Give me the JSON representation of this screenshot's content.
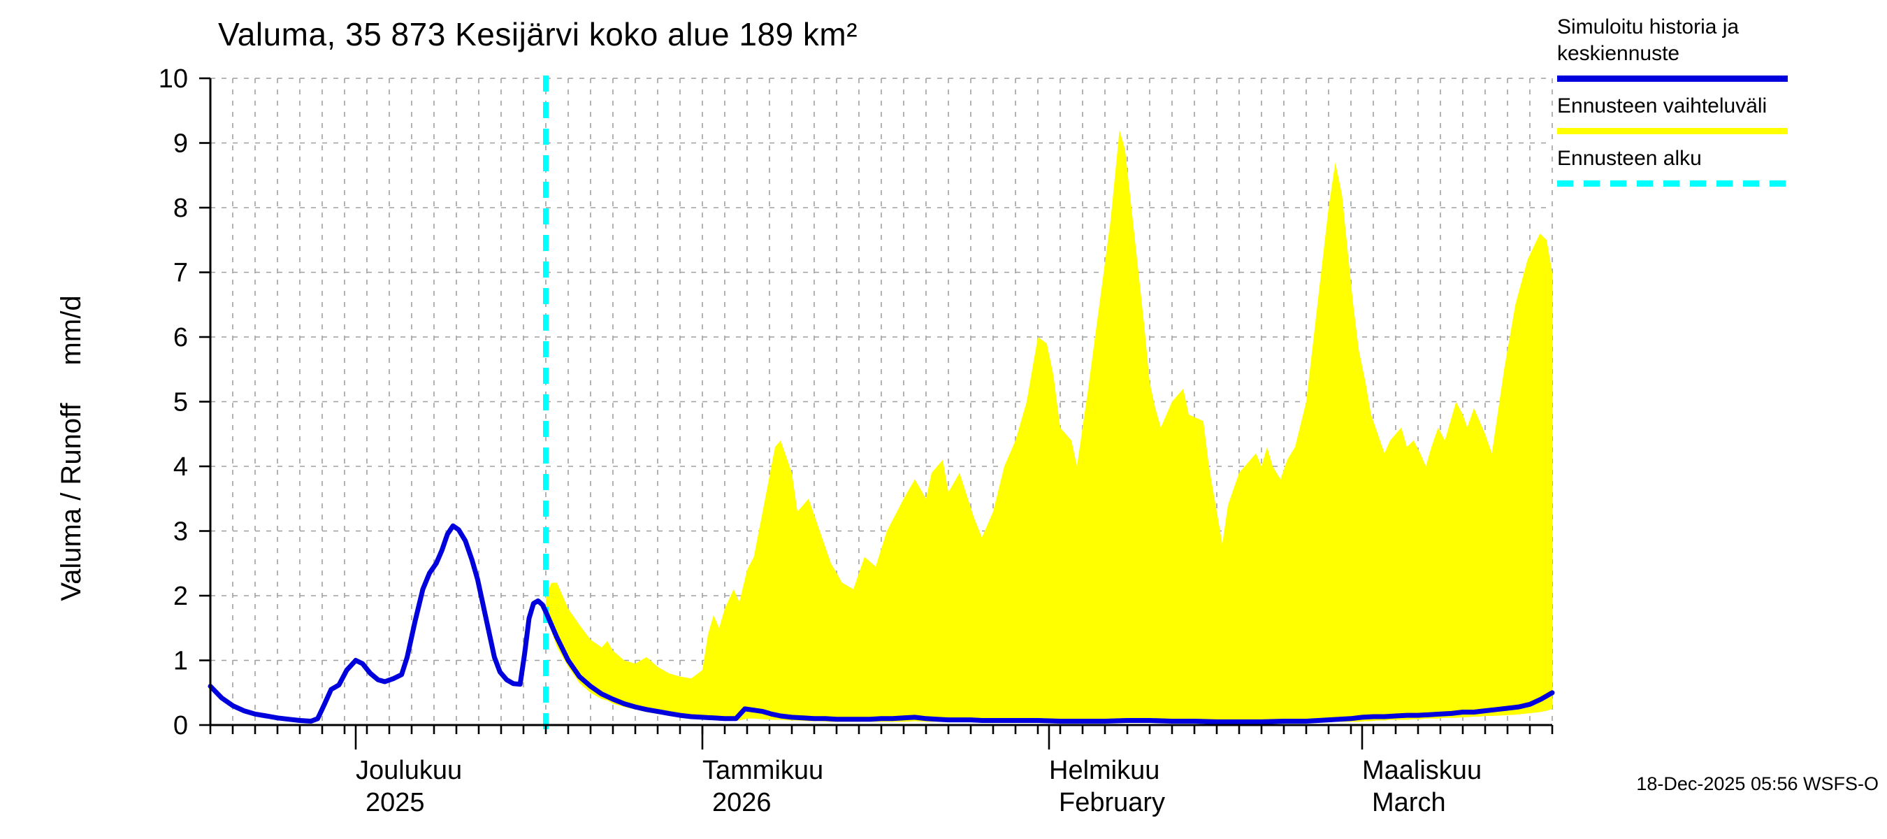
{
  "header": {
    "title": "Valuma, 35 873 Kesijärvi koko alue 189 km²"
  },
  "y_axis": {
    "label_main": "Valuma / Runoff",
    "label_unit": "mm/d"
  },
  "legend": {
    "position": "top-right",
    "items": [
      {
        "label_lines": [
          "Simuloitu historia ja",
          "keskiennuste"
        ],
        "color": "#0000dd",
        "style": "solid"
      },
      {
        "label_lines": [
          "Ennusteen vaihteluväli"
        ],
        "color": "#ffff00",
        "style": "solid"
      },
      {
        "label_lines": [
          "Ennusteen alku"
        ],
        "color": "#00ffff",
        "style": "dashed"
      }
    ]
  },
  "footer": {
    "timestamp": "18-Dec-2025 05:56 WSFS-O"
  },
  "chart_data": {
    "type": "line",
    "title": "Valuma, 35 873 Kesijärvi koko alue 189 km²",
    "xlabel": "",
    "ylabel": "Valuma / Runoff mm/d",
    "ylim": [
      0,
      10
    ],
    "yticks": [
      0,
      1,
      2,
      3,
      4,
      5,
      6,
      7,
      8,
      9,
      10
    ],
    "grid": true,
    "x_total_days": 120,
    "x_start_date": "2025-11-18",
    "forecast_start_day": 30,
    "x_axis": {
      "minor_tick_interval_days": 2,
      "month_ticks": [
        {
          "day": 13,
          "label1": "Joulukuu",
          "label2": "2025"
        },
        {
          "day": 44,
          "label1": "Tammikuu",
          "label2": "2026"
        },
        {
          "day": 75,
          "label1": "Helmikuu",
          "label2": "February"
        },
        {
          "day": 103,
          "label1": "Maaliskuu",
          "label2": "March"
        }
      ]
    },
    "series": {
      "history_mean": {
        "name": "Simuloitu historia ja keskiennuste",
        "color": "#0000dd",
        "points": [
          [
            0,
            0.6
          ],
          [
            1,
            0.42
          ],
          [
            2,
            0.3
          ],
          [
            3,
            0.22
          ],
          [
            4,
            0.17
          ],
          [
            5,
            0.14
          ],
          [
            6,
            0.11
          ],
          [
            7,
            0.09
          ],
          [
            8,
            0.07
          ],
          [
            9,
            0.06
          ],
          [
            9.6,
            0.1
          ],
          [
            10.2,
            0.32
          ],
          [
            10.8,
            0.55
          ],
          [
            11.5,
            0.62
          ],
          [
            12.2,
            0.85
          ],
          [
            13,
            1.0
          ],
          [
            13.6,
            0.95
          ],
          [
            14.3,
            0.8
          ],
          [
            15,
            0.7
          ],
          [
            15.6,
            0.67
          ],
          [
            16.4,
            0.72
          ],
          [
            17.1,
            0.78
          ],
          [
            17.6,
            1.05
          ],
          [
            18.3,
            1.6
          ],
          [
            19,
            2.1
          ],
          [
            19.6,
            2.35
          ],
          [
            20.2,
            2.5
          ],
          [
            20.7,
            2.7
          ],
          [
            21.2,
            2.95
          ],
          [
            21.7,
            3.08
          ],
          [
            22.2,
            3.02
          ],
          [
            22.8,
            2.85
          ],
          [
            23.4,
            2.55
          ],
          [
            23.9,
            2.25
          ],
          [
            24.4,
            1.85
          ],
          [
            24.9,
            1.45
          ],
          [
            25.4,
            1.05
          ],
          [
            25.9,
            0.82
          ],
          [
            26.5,
            0.7
          ],
          [
            27.1,
            0.64
          ],
          [
            27.7,
            0.63
          ],
          [
            28.1,
            1.1
          ],
          [
            28.5,
            1.65
          ],
          [
            28.9,
            1.88
          ],
          [
            29.3,
            1.92
          ],
          [
            29.7,
            1.86
          ],
          [
            30,
            1.75
          ],
          [
            31,
            1.35
          ],
          [
            32,
            1.0
          ],
          [
            33,
            0.75
          ],
          [
            34,
            0.6
          ],
          [
            35,
            0.48
          ],
          [
            36,
            0.4
          ],
          [
            37,
            0.33
          ],
          [
            38,
            0.28
          ],
          [
            39,
            0.24
          ],
          [
            40,
            0.21
          ],
          [
            41,
            0.18
          ],
          [
            42,
            0.15
          ],
          [
            43,
            0.13
          ],
          [
            44,
            0.12
          ],
          [
            45,
            0.11
          ],
          [
            46,
            0.1
          ],
          [
            47,
            0.1
          ],
          [
            47.8,
            0.25
          ],
          [
            48.6,
            0.23
          ],
          [
            49.4,
            0.21
          ],
          [
            50.2,
            0.17
          ],
          [
            51,
            0.14
          ],
          [
            52,
            0.12
          ],
          [
            53,
            0.11
          ],
          [
            54,
            0.1
          ],
          [
            55,
            0.1
          ],
          [
            56,
            0.09
          ],
          [
            57,
            0.09
          ],
          [
            58,
            0.09
          ],
          [
            59,
            0.09
          ],
          [
            60,
            0.1
          ],
          [
            61,
            0.1
          ],
          [
            62,
            0.11
          ],
          [
            63,
            0.12
          ],
          [
            64,
            0.1
          ],
          [
            65,
            0.09
          ],
          [
            66,
            0.08
          ],
          [
            67,
            0.08
          ],
          [
            68,
            0.08
          ],
          [
            69,
            0.07
          ],
          [
            70,
            0.07
          ],
          [
            72,
            0.07
          ],
          [
            74,
            0.07
          ],
          [
            76,
            0.06
          ],
          [
            78,
            0.06
          ],
          [
            80,
            0.06
          ],
          [
            82,
            0.07
          ],
          [
            84,
            0.07
          ],
          [
            86,
            0.06
          ],
          [
            88,
            0.06
          ],
          [
            90,
            0.05
          ],
          [
            92,
            0.05
          ],
          [
            94,
            0.05
          ],
          [
            96,
            0.06
          ],
          [
            98,
            0.06
          ],
          [
            100,
            0.08
          ],
          [
            102,
            0.1
          ],
          [
            103,
            0.12
          ],
          [
            104,
            0.13
          ],
          [
            105,
            0.13
          ],
          [
            106,
            0.14
          ],
          [
            107,
            0.15
          ],
          [
            108,
            0.15
          ],
          [
            109,
            0.16
          ],
          [
            110,
            0.17
          ],
          [
            111,
            0.18
          ],
          [
            112,
            0.2
          ],
          [
            113,
            0.2
          ],
          [
            114,
            0.22
          ],
          [
            115,
            0.24
          ],
          [
            116,
            0.26
          ],
          [
            117,
            0.28
          ],
          [
            118,
            0.32
          ],
          [
            119,
            0.4
          ],
          [
            120,
            0.5
          ]
        ]
      },
      "forecast_band": {
        "name": "Ennusteen vaihteluväli",
        "color": "#ffff00",
        "points": [
          [
            30,
            1.7,
            2.0
          ],
          [
            30.5,
            1.45,
            2.2
          ],
          [
            31,
            1.2,
            2.2
          ],
          [
            31.5,
            1.05,
            2.0
          ],
          [
            32,
            0.9,
            1.8
          ],
          [
            33,
            0.65,
            1.55
          ],
          [
            34,
            0.5,
            1.32
          ],
          [
            35,
            0.4,
            1.2
          ],
          [
            35.5,
            0.38,
            1.3
          ],
          [
            36,
            0.33,
            1.15
          ],
          [
            37,
            0.28,
            1.0
          ],
          [
            38,
            0.24,
            0.95
          ],
          [
            39,
            0.2,
            1.05
          ],
          [
            40,
            0.17,
            0.9
          ],
          [
            41,
            0.15,
            0.8
          ],
          [
            42,
            0.12,
            0.75
          ],
          [
            43,
            0.1,
            0.72
          ],
          [
            44,
            0.09,
            0.85
          ],
          [
            44.5,
            0.09,
            1.4
          ],
          [
            45,
            0.08,
            1.7
          ],
          [
            45.5,
            0.08,
            1.5
          ],
          [
            46,
            0.08,
            1.8
          ],
          [
            46.8,
            0.07,
            2.1
          ],
          [
            47.3,
            0.07,
            1.9
          ],
          [
            48,
            0.1,
            2.4
          ],
          [
            48.6,
            0.1,
            2.6
          ],
          [
            49.5,
            0.09,
            3.4
          ],
          [
            50.5,
            0.08,
            4.3
          ],
          [
            51,
            0.08,
            4.4
          ],
          [
            52,
            0.07,
            3.9
          ],
          [
            52.5,
            0.07,
            3.3
          ],
          [
            53.5,
            0.06,
            3.5
          ],
          [
            54.5,
            0.06,
            3.0
          ],
          [
            55.5,
            0.05,
            2.5
          ],
          [
            56.5,
            0.05,
            2.2
          ],
          [
            57.5,
            0.05,
            2.1
          ],
          [
            58.5,
            0.05,
            2.6
          ],
          [
            59.5,
            0.05,
            2.45
          ],
          [
            60.5,
            0.05,
            3.0
          ],
          [
            62,
            0.05,
            3.5
          ],
          [
            63,
            0.06,
            3.8
          ],
          [
            64,
            0.05,
            3.5
          ],
          [
            64.5,
            0.05,
            3.9
          ],
          [
            65.5,
            0.05,
            4.1
          ],
          [
            66,
            0.05,
            3.6
          ],
          [
            67,
            0.05,
            3.9
          ],
          [
            68.3,
            0.05,
            3.2
          ],
          [
            69,
            0.05,
            2.9
          ],
          [
            70,
            0.05,
            3.3
          ],
          [
            71,
            0.05,
            4.0
          ],
          [
            72,
            0.05,
            4.4
          ],
          [
            73,
            0.05,
            5.0
          ],
          [
            74,
            0.05,
            6.0
          ],
          [
            74.8,
            0.05,
            5.9
          ],
          [
            75.4,
            0.05,
            5.4
          ],
          [
            76,
            0.05,
            4.6
          ],
          [
            77,
            0.05,
            4.4
          ],
          [
            77.5,
            0.05,
            4.0
          ],
          [
            78.5,
            0.05,
            5.2
          ],
          [
            79.5,
            0.05,
            6.5
          ],
          [
            80.5,
            0.05,
            7.8
          ],
          [
            81.3,
            0.05,
            9.2
          ],
          [
            81.8,
            0.05,
            8.9
          ],
          [
            83,
            0.05,
            7.0
          ],
          [
            83.5,
            0.05,
            6.2
          ],
          [
            84,
            0.05,
            5.3
          ],
          [
            84.5,
            0.05,
            4.9
          ],
          [
            85,
            0.05,
            4.6
          ],
          [
            86,
            0.05,
            5.0
          ],
          [
            87,
            0.05,
            5.2
          ],
          [
            87.5,
            0.05,
            4.8
          ],
          [
            88.8,
            0.05,
            4.7
          ],
          [
            89.3,
            0.05,
            4.0
          ],
          [
            90,
            0.05,
            3.3
          ],
          [
            90.5,
            0.05,
            2.8
          ],
          [
            91,
            0.05,
            3.4
          ],
          [
            92,
            0.05,
            3.9
          ],
          [
            93,
            0.05,
            4.1
          ],
          [
            93.5,
            0.05,
            4.2
          ],
          [
            94,
            0.05,
            4.0
          ],
          [
            94.5,
            0.05,
            4.3
          ],
          [
            95,
            0.05,
            4.0
          ],
          [
            95.7,
            0.05,
            3.8
          ],
          [
            96.3,
            0.05,
            4.1
          ],
          [
            97,
            0.05,
            4.3
          ],
          [
            98,
            0.05,
            5.0
          ],
          [
            99,
            0.05,
            6.5
          ],
          [
            100,
            0.05,
            8.0
          ],
          [
            100.6,
            0.05,
            8.7
          ],
          [
            101.2,
            0.05,
            8.2
          ],
          [
            102.2,
            0.05,
            6.5
          ],
          [
            102.7,
            0.05,
            5.8
          ],
          [
            103.3,
            0.06,
            5.3
          ],
          [
            103.8,
            0.06,
            4.8
          ],
          [
            104.4,
            0.07,
            4.5
          ],
          [
            105,
            0.07,
            4.2
          ],
          [
            105.5,
            0.08,
            4.4
          ],
          [
            106.5,
            0.08,
            4.6
          ],
          [
            107,
            0.08,
            4.3
          ],
          [
            107.6,
            0.09,
            4.4
          ],
          [
            108.2,
            0.09,
            4.2
          ],
          [
            108.7,
            0.1,
            4.0
          ],
          [
            109.2,
            0.1,
            4.3
          ],
          [
            109.8,
            0.1,
            4.6
          ],
          [
            110.4,
            0.11,
            4.4
          ],
          [
            111.4,
            0.11,
            5.0
          ],
          [
            112,
            0.12,
            4.8
          ],
          [
            112.4,
            0.12,
            4.6
          ],
          [
            113,
            0.13,
            4.9
          ],
          [
            113.5,
            0.13,
            4.7
          ],
          [
            114,
            0.14,
            4.5
          ],
          [
            114.6,
            0.14,
            4.2
          ],
          [
            115.7,
            0.15,
            5.5
          ],
          [
            116.7,
            0.16,
            6.5
          ],
          [
            117.8,
            0.18,
            7.2
          ],
          [
            118.9,
            0.2,
            7.6
          ],
          [
            119.5,
            0.22,
            7.5
          ],
          [
            120,
            0.25,
            7.0
          ]
        ]
      },
      "forecast_start": {
        "name": "Ennusteen alku",
        "color": "#00ffff",
        "day": 30
      }
    }
  }
}
